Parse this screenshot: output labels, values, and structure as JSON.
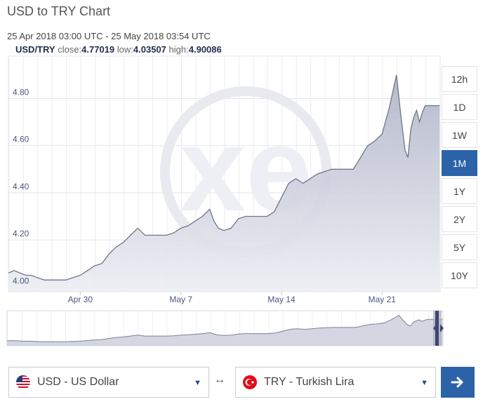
{
  "header": {
    "title": "USD to TRY Chart",
    "date_range": "25 Apr 2018 03:00 UTC - 25 May 2018 03:54 UTC",
    "pair": "USD/TRY",
    "close_label": "close:",
    "close_value": "4.77019",
    "low_label": "low:",
    "low_value": "4.03507",
    "high_label": "high:",
    "high_value": "4.90086"
  },
  "range_buttons": [
    {
      "label": "12h",
      "active": false
    },
    {
      "label": "1D",
      "active": false
    },
    {
      "label": "1W",
      "active": false
    },
    {
      "label": "1M",
      "active": true
    },
    {
      "label": "1Y",
      "active": false
    },
    {
      "label": "2Y",
      "active": false
    },
    {
      "label": "5Y",
      "active": false
    },
    {
      "label": "10Y",
      "active": false
    }
  ],
  "watermark": "xe",
  "chart_data": {
    "type": "area",
    "y_ticks": [
      "4.00",
      "4.20",
      "4.40",
      "4.60",
      "4.80"
    ],
    "y_tick_values": [
      4.0,
      4.2,
      4.4,
      4.6,
      4.8
    ],
    "x_ticks": [
      "Apr 30",
      "May 7",
      "May 14",
      "May 21"
    ],
    "x_tick_days": [
      5,
      12,
      19,
      26
    ],
    "ylim": [
      3.98,
      4.98
    ],
    "xlim": [
      0,
      30.04
    ],
    "grid": true,
    "x_days": [
      0,
      0.4,
      0.8,
      1.2,
      1.6,
      2.0,
      2.5,
      3.0,
      3.5,
      4.0,
      4.5,
      5.0,
      5.5,
      6.0,
      6.5,
      7.0,
      7.5,
      8.0,
      8.5,
      9.0,
      9.5,
      10.0,
      10.5,
      11.0,
      11.5,
      12.0,
      12.5,
      13.0,
      13.5,
      14.0,
      14.3,
      14.6,
      15.0,
      15.5,
      16.0,
      16.5,
      17.0,
      17.5,
      18.0,
      18.5,
      19.0,
      19.5,
      20.0,
      20.5,
      21.0,
      21.5,
      22.0,
      22.5,
      23.0,
      23.5,
      24.0,
      24.5,
      25.0,
      25.5,
      26.0,
      26.5,
      27.0,
      27.3,
      27.6,
      27.8,
      28.0,
      28.2,
      28.4,
      28.6,
      28.8,
      29.0,
      29.2,
      29.4,
      29.6,
      29.8,
      30.0
    ],
    "values": [
      4.06,
      4.07,
      4.06,
      4.05,
      4.05,
      4.04,
      4.03,
      4.03,
      4.03,
      4.03,
      4.04,
      4.05,
      4.07,
      4.09,
      4.1,
      4.14,
      4.17,
      4.19,
      4.22,
      4.25,
      4.22,
      4.22,
      4.22,
      4.22,
      4.23,
      4.25,
      4.26,
      4.28,
      4.3,
      4.33,
      4.28,
      4.25,
      4.24,
      4.25,
      4.29,
      4.3,
      4.3,
      4.3,
      4.3,
      4.32,
      4.38,
      4.44,
      4.46,
      4.44,
      4.46,
      4.48,
      4.49,
      4.5,
      4.5,
      4.5,
      4.5,
      4.55,
      4.6,
      4.62,
      4.65,
      4.76,
      4.9,
      4.73,
      4.58,
      4.55,
      4.67,
      4.72,
      4.75,
      4.7,
      4.74,
      4.77,
      4.77,
      4.77,
      4.77,
      4.77,
      4.77
    ]
  },
  "converter": {
    "from_label": "USD - US Dollar",
    "swap_symbol": "↔",
    "to_label": "TRY - Turkish Lira",
    "caret": "▼",
    "go_icon": "arrow-right-icon"
  },
  "colors": {
    "accent": "#2c63a8",
    "line": "#6f7589",
    "area": "#c5c8d6"
  }
}
